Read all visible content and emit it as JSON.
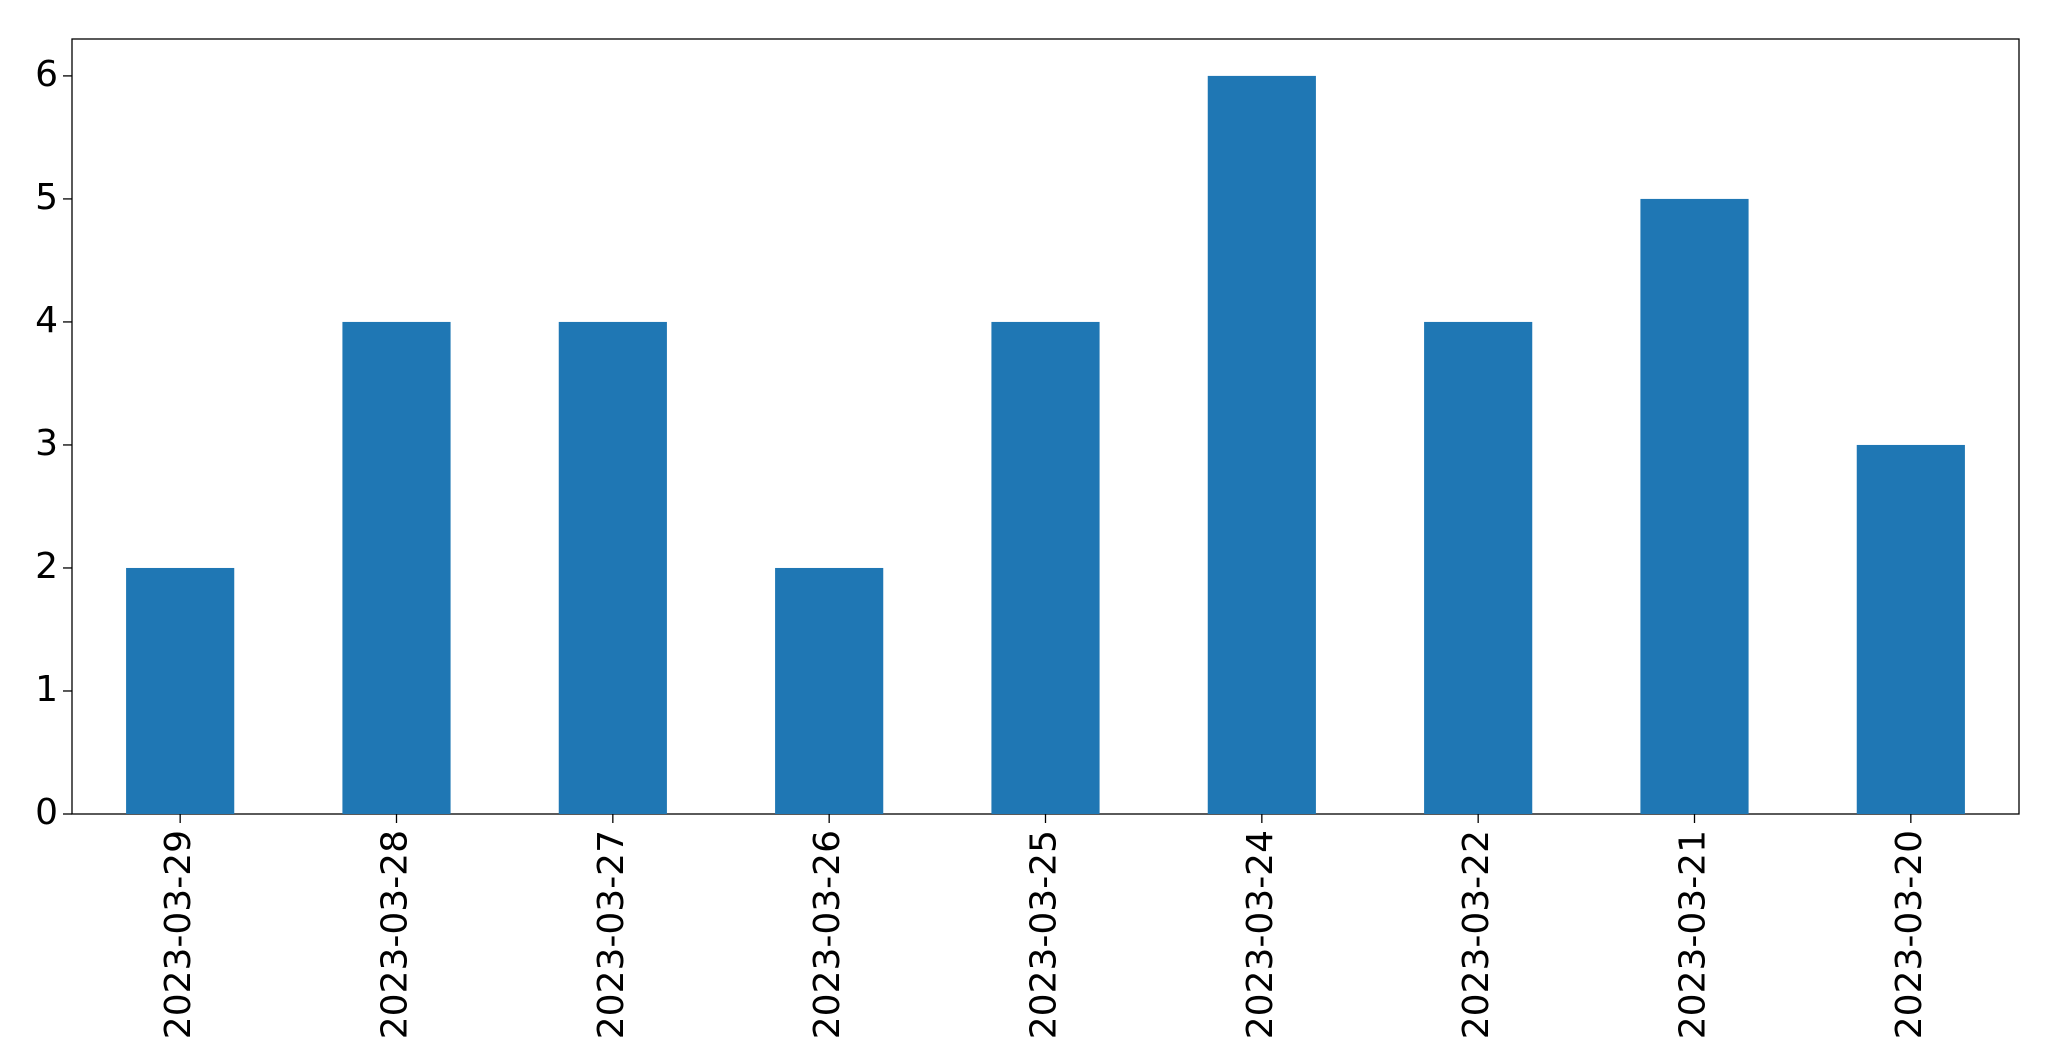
{
  "chart_data": {
    "type": "bar",
    "categories": [
      "2023-03-29",
      "2023-03-28",
      "2023-03-27",
      "2023-03-26",
      "2023-03-25",
      "2023-03-24",
      "2023-03-22",
      "2023-03-21",
      "2023-03-20"
    ],
    "values": [
      2,
      4,
      4,
      2,
      4,
      6,
      4,
      5,
      3
    ],
    "color": "#1f77b4",
    "ylim": [
      0,
      6.3
    ],
    "yticks": [
      0,
      1,
      2,
      3,
      4,
      5,
      6
    ],
    "grid": false
  }
}
